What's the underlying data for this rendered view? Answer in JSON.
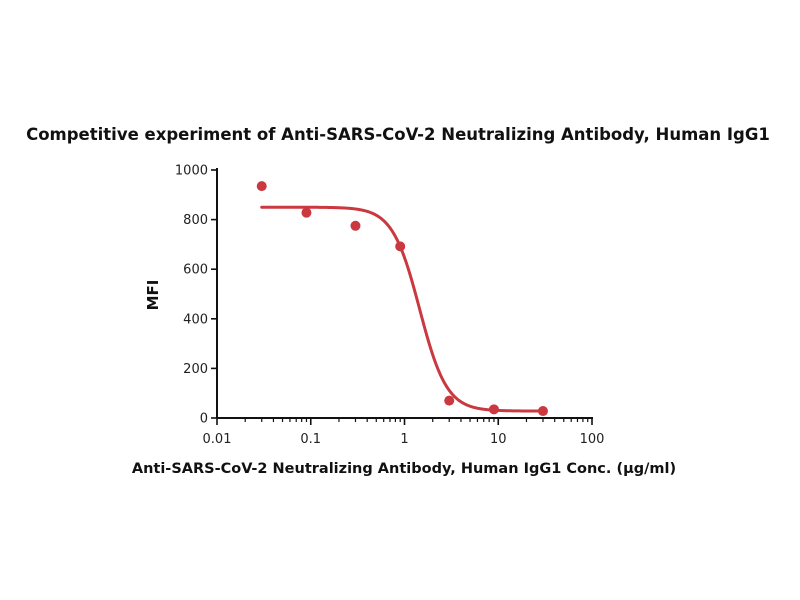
{
  "chart_data": {
    "type": "scatter",
    "title": "Competitive experiment of Anti-SARS-CoV-2 Neutralizing Antibody, Human IgG1",
    "xlabel": "Anti-SARS-CoV-2 Neutralizing Antibody, Human IgG1 Conc. (µg/ml)",
    "ylabel": "MFI",
    "x_scale": "log",
    "xlim": [
      0.01,
      100
    ],
    "ylim": [
      0,
      1000
    ],
    "x_ticks": [
      0.01,
      0.1,
      1,
      10,
      100
    ],
    "x_tick_labels": [
      "0.01",
      "0.1",
      "1",
      "10",
      "100"
    ],
    "y_ticks": [
      0,
      200,
      400,
      600,
      800,
      1000
    ],
    "y_tick_labels": [
      "0",
      "200",
      "400",
      "600",
      "800",
      "1000"
    ],
    "grid": false,
    "legend": "none",
    "color": "#c9393f",
    "series": [
      {
        "x": [
          0.03,
          0.09,
          0.3,
          0.9,
          3,
          9,
          30
        ],
        "y": [
          935,
          828,
          775,
          692,
          70,
          35,
          28
        ]
      }
    ],
    "fit": {
      "model": "four-parameter logistic",
      "top": 850,
      "bottom": 28,
      "ec50": 1.45,
      "hill": 3.0,
      "x_range": [
        0.03,
        30
      ]
    }
  }
}
